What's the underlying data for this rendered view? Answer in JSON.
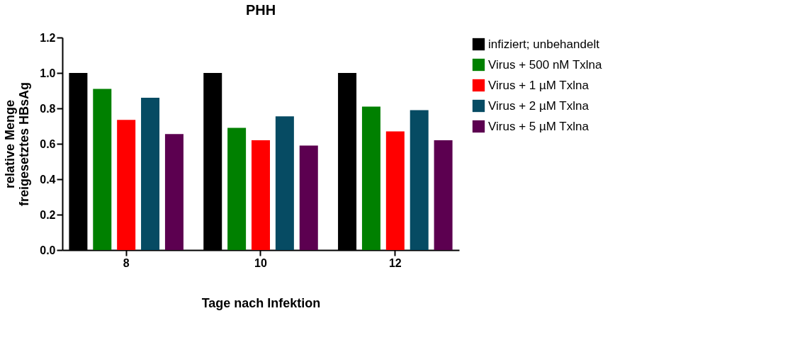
{
  "chart_data": {
    "type": "bar",
    "title": "PHH",
    "xlabel": "Tage nach Infektion",
    "ylabel": "relative Menge freigesetztes HBsAg",
    "categories": [
      "8",
      "10",
      "12"
    ],
    "series": [
      {
        "name": "infiziert; unbehandelt",
        "color": "#000000",
        "values": [
          1.0,
          1.0,
          1.0
        ]
      },
      {
        "name": "Virus + 500 nM Txlna",
        "color": "#008000",
        "values": [
          0.91,
          0.69,
          0.81
        ]
      },
      {
        "name": "Virus + 1 µM Txlna",
        "color": "#ff0000",
        "values": [
          0.735,
          0.62,
          0.67
        ]
      },
      {
        "name": "Virus + 2 µM Txlna",
        "color": "#064b63",
        "values": [
          0.86,
          0.755,
          0.79
        ]
      },
      {
        "name": "Virus + 5 µM Txlna",
        "color": "#5c0050",
        "values": [
          0.655,
          0.59,
          0.62
        ]
      }
    ],
    "ylim": [
      0,
      1.2
    ],
    "yticks": [
      {
        "value": 0,
        "label": "0.0"
      },
      0.2,
      0.4,
      0.6,
      0.8,
      {
        "value": 1,
        "label": "1.0"
      },
      1.2
    ],
    "grid": false,
    "legend": "right"
  }
}
